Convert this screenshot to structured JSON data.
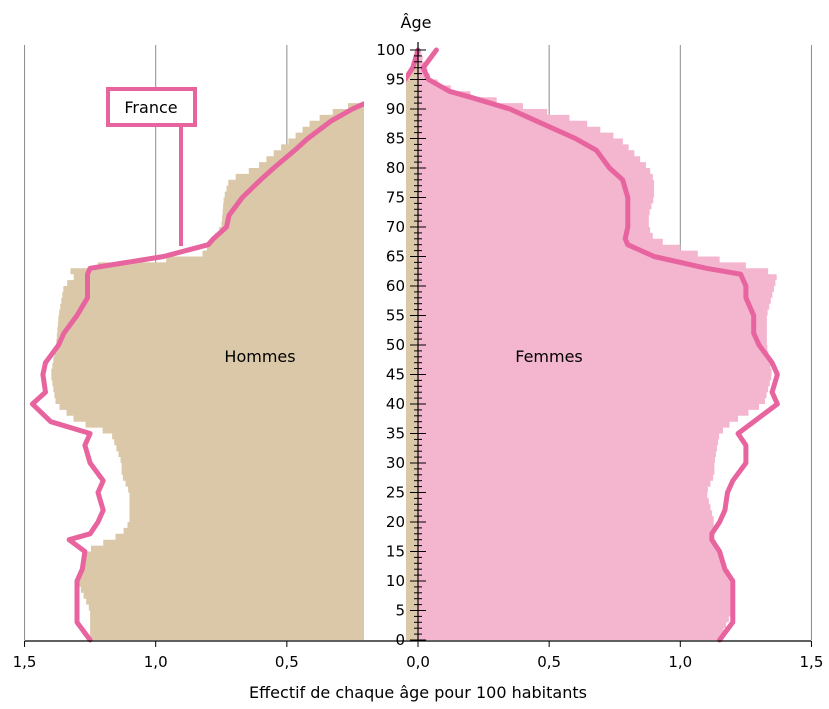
{
  "chart_data": {
    "type": "population-pyramid",
    "y_axis_title": "Âge",
    "x_axis_title": "Effectif de chaque âge pour 100 habitants",
    "left_group_label": "Hommes",
    "right_group_label": "Femmes",
    "reference_label": "France",
    "x_max": 1.5,
    "x_ticks_left": [
      "1,5",
      "1,0",
      "0,5",
      "0,0"
    ],
    "x_ticks_right": [
      "0,5",
      "1,0",
      "1,5"
    ],
    "x_tick_values": [
      1.5,
      1.0,
      0.5,
      0.0,
      0.5,
      1.0,
      1.5
    ],
    "age_range": [
      0,
      100
    ],
    "age_tick_labels": [
      "0",
      "5",
      "10",
      "15",
      "20",
      "25",
      "30",
      "35",
      "40",
      "45",
      "50",
      "55",
      "60",
      "65",
      "70",
      "75",
      "80",
      "85",
      "90",
      "95",
      "100"
    ],
    "colors": {
      "hommes_fill": "#dbc8a8",
      "femmes_fill": "#f4b5cf",
      "france_line": "#e8649f",
      "grid": "#8a8a8a"
    },
    "series": [
      {
        "name": "Hommes",
        "ages": [
          0,
          5,
          10,
          15,
          18,
          20,
          25,
          28,
          30,
          35,
          37,
          40,
          45,
          50,
          55,
          60,
          62,
          63,
          65,
          68,
          70,
          75,
          78,
          80,
          85,
          88,
          90,
          93,
          95,
          98,
          100
        ],
        "values": [
          1.25,
          1.25,
          1.3,
          1.27,
          1.13,
          1.1,
          1.1,
          1.13,
          1.13,
          1.17,
          1.3,
          1.38,
          1.4,
          1.38,
          1.37,
          1.35,
          1.3,
          1.35,
          0.83,
          0.78,
          0.75,
          0.74,
          0.72,
          0.62,
          0.48,
          0.4,
          0.3,
          0.1,
          0.05,
          0.02,
          0.01
        ]
      },
      {
        "name": "Femmes",
        "ages": [
          0,
          5,
          10,
          15,
          18,
          20,
          25,
          28,
          30,
          35,
          37,
          40,
          45,
          50,
          55,
          60,
          62,
          63,
          65,
          68,
          70,
          72,
          75,
          78,
          80,
          85,
          88,
          90,
          93,
          95,
          98,
          100
        ],
        "values": [
          1.15,
          1.2,
          1.2,
          1.15,
          1.12,
          1.13,
          1.1,
          1.13,
          1.13,
          1.15,
          1.2,
          1.32,
          1.35,
          1.33,
          1.33,
          1.36,
          1.37,
          1.3,
          1.1,
          0.9,
          0.88,
          0.88,
          0.9,
          0.9,
          0.88,
          0.77,
          0.62,
          0.45,
          0.15,
          0.05,
          0.02,
          0.01
        ]
      },
      {
        "name": "France",
        "ages_left": [
          0,
          3,
          5,
          8,
          10,
          12,
          15,
          17,
          18,
          20,
          22,
          25,
          27,
          30,
          33,
          35,
          37,
          40,
          42,
          45,
          47,
          50,
          52,
          55,
          58,
          60,
          62,
          63,
          65,
          67,
          68,
          70,
          72,
          75,
          78,
          80,
          83,
          85,
          88,
          90,
          92,
          93,
          95,
          97,
          100
        ],
        "values_left": [
          1.25,
          1.3,
          1.3,
          1.3,
          1.3,
          1.28,
          1.27,
          1.33,
          1.25,
          1.22,
          1.2,
          1.22,
          1.2,
          1.25,
          1.27,
          1.25,
          1.4,
          1.47,
          1.42,
          1.43,
          1.42,
          1.37,
          1.35,
          1.3,
          1.26,
          1.26,
          1.26,
          1.25,
          0.97,
          0.8,
          0.78,
          0.73,
          0.72,
          0.67,
          0.6,
          0.55,
          0.47,
          0.42,
          0.33,
          0.25,
          0.15,
          0.1,
          0.05,
          0.02,
          0.0
        ],
        "ages_right": [
          0,
          3,
          5,
          8,
          10,
          12,
          15,
          17,
          18,
          20,
          22,
          25,
          27,
          30,
          33,
          35,
          37,
          40,
          42,
          45,
          47,
          50,
          52,
          55,
          58,
          60,
          62,
          63,
          65,
          67,
          68,
          70,
          72,
          75,
          78,
          80,
          83,
          85,
          88,
          90,
          92,
          93,
          95,
          97,
          100
        ],
        "values_right": [
          1.15,
          1.2,
          1.2,
          1.2,
          1.2,
          1.17,
          1.15,
          1.12,
          1.12,
          1.15,
          1.17,
          1.18,
          1.2,
          1.25,
          1.25,
          1.22,
          1.28,
          1.37,
          1.35,
          1.37,
          1.35,
          1.3,
          1.28,
          1.28,
          1.25,
          1.25,
          1.23,
          1.1,
          0.9,
          0.8,
          0.79,
          0.8,
          0.8,
          0.8,
          0.78,
          0.73,
          0.68,
          0.6,
          0.45,
          0.35,
          0.2,
          0.12,
          0.04,
          0.02,
          0.07
        ]
      }
    ]
  }
}
